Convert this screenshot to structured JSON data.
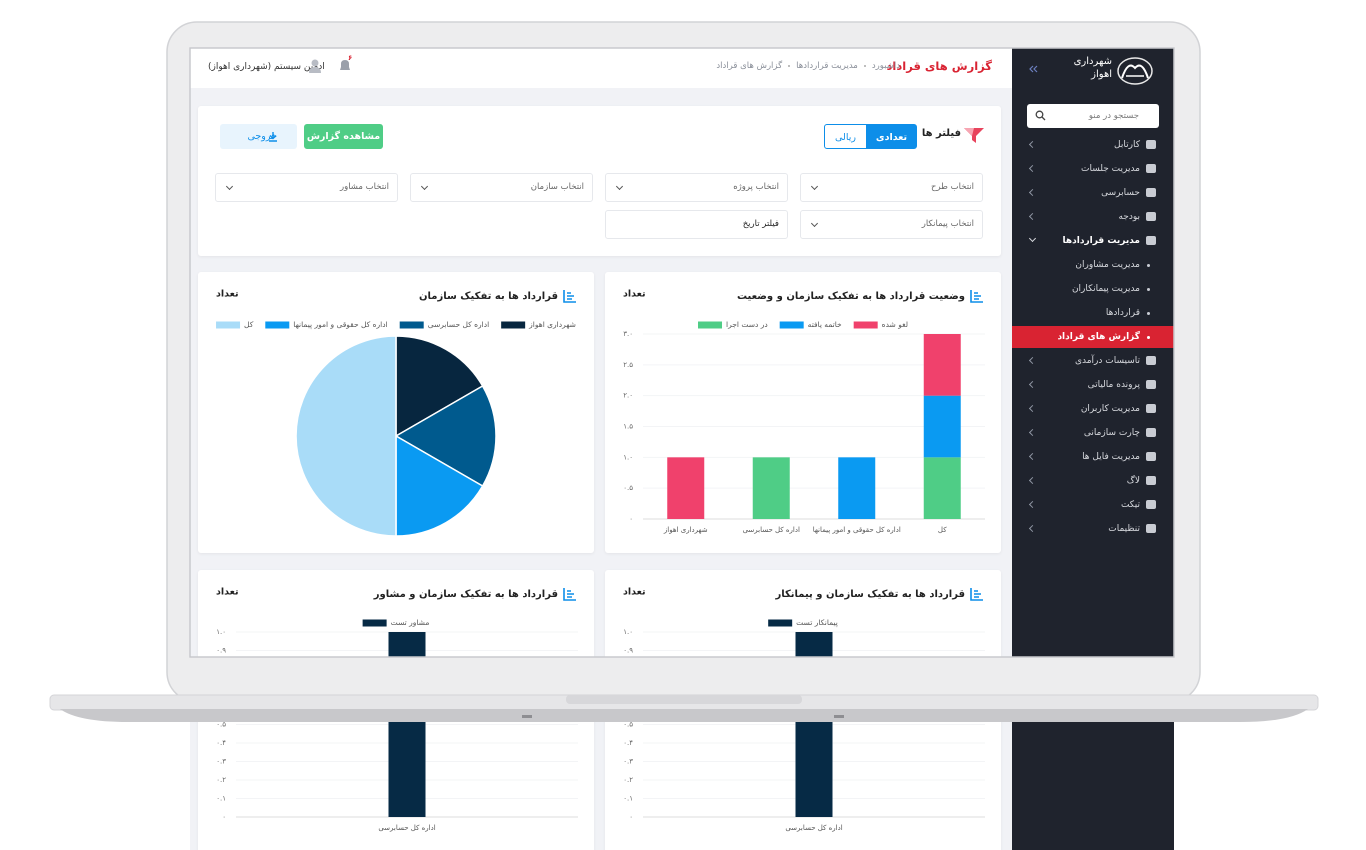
{
  "sidebar": {
    "brand": [
      "شهرداری",
      "اهواز"
    ],
    "search_placeholder": "جستجو در منو",
    "menu": [
      {
        "label": "کارتابل"
      },
      {
        "label": "مدیریت جلسات"
      },
      {
        "label": "حسابرسی"
      },
      {
        "label": "بودجه"
      },
      {
        "label": "مدیریت قراردادها",
        "children": [
          {
            "label": "مدیریت مشاوران"
          },
          {
            "label": "مدیریت پیمانکاران"
          },
          {
            "label": "قراردادها"
          },
          {
            "label": "گزارش های قراداد",
            "active": true
          }
        ]
      },
      {
        "label": "تاسیسات درآمدی"
      },
      {
        "label": "پرونده مالیاتی"
      },
      {
        "label": "مدیریت کاربران"
      },
      {
        "label": "چارت سازمانی"
      },
      {
        "label": "مدیریت فایل ها"
      },
      {
        "label": "لاگ"
      },
      {
        "label": "تیکت"
      },
      {
        "label": "تنظیمات"
      }
    ]
  },
  "header": {
    "title": "گزارش های قراداد",
    "breadcrumb": [
      "داشبورد",
      "مدیریت قراردادها",
      "گزارش های قراداد"
    ],
    "user": "ادمین سیستم (شهرداری اهواز)",
    "notifications": "۶"
  },
  "filters": {
    "title": "فیلتر ها",
    "modes": [
      {
        "label": "تعدادی",
        "active": true
      },
      {
        "label": "ریالی"
      }
    ],
    "view_button": "مشاهده گزارش",
    "export_button": "خروجی",
    "selects": [
      "انتخاب طرح",
      "انتخاب پروژه",
      "انتخاب سازمان",
      "انتخاب مشاور",
      "انتخاب پیمانکار"
    ],
    "date_filter": "فیلتر تاریخ"
  },
  "chart_data": [
    {
      "type": "bar",
      "title": "وضعیت قرارداد ها به تفکیک سازمان و وضعیت",
      "y_label": "تعداد",
      "stacked": true,
      "grid": true,
      "categories": [
        "شهرداری اهواز",
        "اداره کل حسابرسی",
        "اداره کل حقوقی و امور پیمانها",
        "کل"
      ],
      "series": [
        {
          "name": "لغو شده",
          "color": "#f0416c",
          "values": [
            1,
            0,
            0,
            1
          ]
        },
        {
          "name": "خاتمه یافته",
          "color": "#0a9af2",
          "values": [
            0,
            0,
            1,
            1
          ]
        },
        {
          "name": "در دست اجرا",
          "color": "#4fcd86",
          "values": [
            0,
            1,
            0,
            1
          ]
        }
      ],
      "ylim": [
        0,
        3
      ],
      "yticks": [
        {
          "value": 0,
          "label": "۰"
        },
        {
          "value": 0.5,
          "label": "۰.۵"
        },
        {
          "value": 1,
          "label": "۱.۰"
        },
        {
          "value": 1.5,
          "label": "۱.۵"
        },
        {
          "value": 2,
          "label": "۲.۰"
        },
        {
          "value": 2.5,
          "label": "۲.۵"
        },
        {
          "value": 3,
          "label": "۳.۰"
        }
      ]
    },
    {
      "type": "pie",
      "title": "قرارداد ها به تفکیک سازمان",
      "y_label": "تعداد",
      "categories": [
        "شهرداری اهواز",
        "اداره کل حسابرسی",
        "اداره کل حقوقی و امور پیمانها",
        "کل"
      ],
      "values": [
        1,
        1,
        1,
        3
      ],
      "colors": [
        "#07263f",
        "#005a8e",
        "#0a9af2",
        "#a9dcf8"
      ]
    },
    {
      "type": "bar",
      "title": "قرارداد ها به تفکیک سازمان و پیمانکار",
      "y_label": "تعداد",
      "stacked": true,
      "grid": true,
      "categories": [
        "اداره کل حسابرسی"
      ],
      "series": [
        {
          "name": "پیمانکار تست",
          "color": "#062a45",
          "values": [
            1
          ]
        }
      ],
      "ylim": [
        0,
        1
      ],
      "yticks": [
        {
          "value": 0,
          "label": "۰"
        },
        {
          "value": 0.1,
          "label": "۰.۱"
        },
        {
          "value": 0.2,
          "label": "۰.۲"
        },
        {
          "value": 0.3,
          "label": "۰.۳"
        },
        {
          "value": 0.4,
          "label": "۰.۴"
        },
        {
          "value": 0.5,
          "label": "۰.۵"
        },
        {
          "value": 0.6,
          "label": "۰.۶"
        },
        {
          "value": 0.7,
          "label": "۰.۷"
        },
        {
          "value": 0.8,
          "label": "۰.۸"
        },
        {
          "value": 0.9,
          "label": "۰.۹"
        },
        {
          "value": 1,
          "label": "۱.۰"
        }
      ]
    },
    {
      "type": "bar",
      "title": "قرارداد ها به تفکیک سازمان و مشاور",
      "y_label": "تعداد",
      "stacked": true,
      "grid": true,
      "categories": [
        "اداره کل حسابرسی"
      ],
      "series": [
        {
          "name": "مشاور تست",
          "color": "#062a45",
          "values": [
            1
          ]
        }
      ],
      "ylim": [
        0,
        1
      ],
      "yticks": [
        {
          "value": 0,
          "label": "۰"
        },
        {
          "value": 0.1,
          "label": "۰.۱"
        },
        {
          "value": 0.2,
          "label": "۰.۲"
        },
        {
          "value": 0.3,
          "label": "۰.۳"
        },
        {
          "value": 0.4,
          "label": "۰.۴"
        },
        {
          "value": 0.5,
          "label": "۰.۵"
        },
        {
          "value": 0.6,
          "label": "۰.۶"
        },
        {
          "value": 0.7,
          "label": "۰.۷"
        },
        {
          "value": 0.8,
          "label": "۰.۸"
        },
        {
          "value": 0.9,
          "label": "۰.۹"
        },
        {
          "value": 1,
          "label": "۱.۰"
        }
      ]
    }
  ]
}
